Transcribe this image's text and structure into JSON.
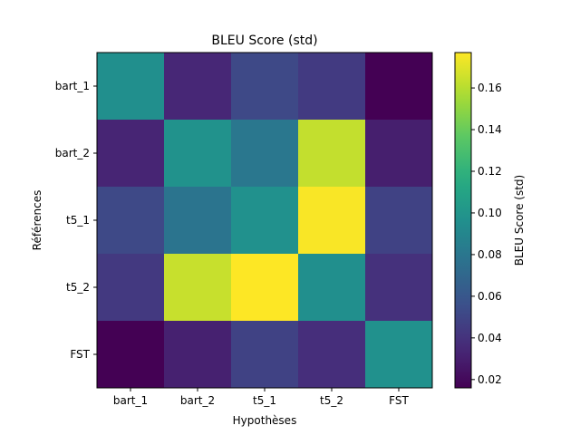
{
  "chart_data": {
    "type": "heatmap",
    "title": "BLEU Score (std)",
    "xlabel": "Hypothèses",
    "ylabel": "Références",
    "x_categories": [
      "bart_1",
      "bart_2",
      "t5_1",
      "t5_2",
      "FST"
    ],
    "y_categories": [
      "bart_1",
      "bart_2",
      "t5_1",
      "t5_2",
      "FST"
    ],
    "values": [
      [
        0.096,
        0.034,
        0.052,
        0.044,
        0.016
      ],
      [
        0.033,
        0.098,
        0.08,
        0.163,
        0.03
      ],
      [
        0.052,
        0.078,
        0.097,
        0.176,
        0.048
      ],
      [
        0.043,
        0.164,
        0.177,
        0.096,
        0.039
      ],
      [
        0.016,
        0.031,
        0.048,
        0.037,
        0.097
      ]
    ],
    "colormap": "viridis",
    "colorbar": {
      "label": "BLEU Score (std)",
      "range": [
        0.016,
        0.177
      ],
      "ticks": [
        "0.02",
        "0.04",
        "0.06",
        "0.08",
        "0.10",
        "0.12",
        "0.14",
        "0.16"
      ]
    }
  }
}
